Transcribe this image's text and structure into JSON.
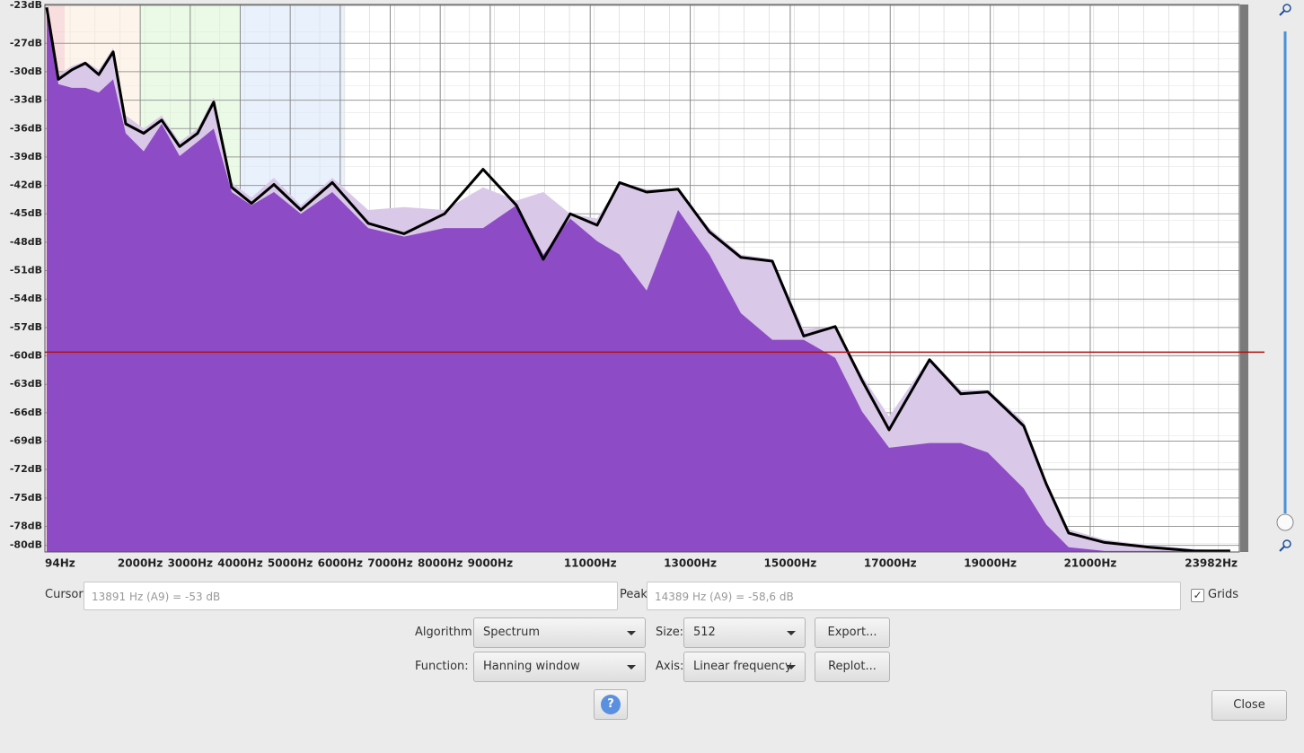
{
  "chart_data": {
    "type": "area",
    "x": [
      130,
      363,
      633,
      902,
      1172,
      1459,
      1710,
      2070,
      2429,
      2788,
      3147,
      3470,
      3830,
      4225,
      4674,
      5213,
      5841,
      6560,
      7278,
      8086,
      8858,
      9523,
      10062,
      10600,
      11139,
      11588,
      12127,
      12756,
      13384,
      14013,
      14642,
      15270,
      15899,
      16438,
      16977,
      17785,
      18413,
      18952,
      19670,
      20119,
      20568,
      21286,
      22184,
      23082,
      23800
    ],
    "series": [
      {
        "color": "#d9c8e8",
        "values": [
          -23.2,
          -30.3,
          -29.4,
          -28.9,
          -29.8,
          -27.5,
          -34.6,
          -36.0,
          -34.6,
          -37.4,
          -36.0,
          -32.7,
          -41.7,
          -43.3,
          -41.2,
          -44.1,
          -41.2,
          -44.6,
          -44.3,
          -44.6,
          -42.2,
          -43.6,
          -42.7,
          -45.0,
          -45.5,
          -41.7,
          -42.4,
          -42.4,
          -46.5,
          -49.3,
          -49.8,
          -57.2,
          -56.9,
          -62.1,
          -66.4,
          -60.2,
          -63.6,
          -63.6,
          -66.9,
          -73.1,
          -78.3,
          -79.4,
          -80.0,
          -80.4,
          -80.6
        ]
      },
      {
        "color": "#8a44c4",
        "values": [
          -23.2,
          -31.3,
          -31.7,
          -31.7,
          -32.2,
          -30.8,
          -36.5,
          -38.4,
          -35.5,
          -38.9,
          -37.4,
          -36.0,
          -42.7,
          -44.1,
          -42.7,
          -45.0,
          -42.7,
          -46.5,
          -47.4,
          -46.5,
          -46.5,
          -44.1,
          -49.3,
          -45.5,
          -47.9,
          -49.3,
          -53.1,
          -44.6,
          -49.3,
          -55.5,
          -58.3,
          -58.3,
          -60.2,
          -65.9,
          -69.7,
          -69.2,
          -69.2,
          -70.2,
          -74.0,
          -77.8,
          -80.2,
          -80.6,
          -80.6,
          -80.6,
          -80.6
        ]
      },
      {
        "color": "#000000",
        "values": [
          -23.2,
          -30.8,
          -29.8,
          -29.1,
          -30.3,
          -27.9,
          -35.5,
          -36.5,
          -35.1,
          -37.9,
          -36.5,
          -33.2,
          -42.2,
          -43.9,
          -41.9,
          -44.6,
          -41.7,
          -46.0,
          -47.1,
          -45.0,
          -40.3,
          -44.1,
          -49.8,
          -45.0,
          -46.2,
          -41.7,
          -42.7,
          -42.4,
          -46.9,
          -49.6,
          -50.0,
          -57.9,
          -56.9,
          -62.6,
          -67.8,
          -60.4,
          -64.0,
          -63.8,
          -67.4,
          -73.5,
          -78.7,
          -79.7,
          -80.2,
          -80.6,
          -80.6
        ]
      }
    ],
    "xlim": [
      94,
      23982
    ],
    "ylim": [
      -80.7,
      -22.9
    ],
    "xticks": [
      {
        "value": 94,
        "label": "94Hz"
      },
      {
        "value": 2000,
        "label": "2000Hz"
      },
      {
        "value": 3000,
        "label": "3000Hz"
      },
      {
        "value": 4000,
        "label": "4000Hz"
      },
      {
        "value": 5000,
        "label": "5000Hz"
      },
      {
        "value": 6000,
        "label": "6000Hz"
      },
      {
        "value": 7000,
        "label": "7000Hz"
      },
      {
        "value": 8000,
        "label": "8000Hz"
      },
      {
        "value": 9000,
        "label": "9000Hz"
      },
      {
        "value": 11000,
        "label": "11000Hz"
      },
      {
        "value": 13000,
        "label": "13000Hz"
      },
      {
        "value": 15000,
        "label": "15000Hz"
      },
      {
        "value": 17000,
        "label": "17000Hz"
      },
      {
        "value": 19000,
        "label": "19000Hz"
      },
      {
        "value": 21000,
        "label": "21000Hz"
      },
      {
        "value": 23982,
        "label": "23982Hz"
      }
    ],
    "yticks": [
      {
        "value": -23,
        "label": "-23dB"
      },
      {
        "value": -27,
        "label": "-27dB"
      },
      {
        "value": -30,
        "label": "-30dB"
      },
      {
        "value": -33,
        "label": "-33dB"
      },
      {
        "value": -36,
        "label": "-36dB"
      },
      {
        "value": -39,
        "label": "-39dB"
      },
      {
        "value": -42,
        "label": "-42dB"
      },
      {
        "value": -45,
        "label": "-45dB"
      },
      {
        "value": -48,
        "label": "-48dB"
      },
      {
        "value": -51,
        "label": "-51dB"
      },
      {
        "value": -54,
        "label": "-54dB"
      },
      {
        "value": -57,
        "label": "-57dB"
      },
      {
        "value": -60,
        "label": "-60dB"
      },
      {
        "value": -63,
        "label": "-63dB"
      },
      {
        "value": -66,
        "label": "-66dB"
      },
      {
        "value": -69,
        "label": "-69dB"
      },
      {
        "value": -72,
        "label": "-72dB"
      },
      {
        "value": -75,
        "label": "-75dB"
      },
      {
        "value": -78,
        "label": "-78dB"
      },
      {
        "value": -80,
        "label": "-80dB"
      }
    ],
    "grid": true,
    "cursor_line": -59.6,
    "cursor_color": "#b01010"
  },
  "controls": {
    "cursor_label": "Cursor:",
    "cursor_value": "13891 Hz (A9) = -53 dB",
    "peak_label": "Peak:",
    "peak_value": "14389 Hz (A9) = -58,6 dB",
    "grids_label": "Grids",
    "algorithm_label": "Algorithm:",
    "algorithm_value": "Spectrum",
    "size_label": "Size:",
    "size_value": "512",
    "export_button": "Export...",
    "function_label": "Function:",
    "function_value": "Hanning window",
    "axis_label": "Axis:",
    "axis_value": "Linear frequency",
    "replot_button": "Replot...",
    "help_button": "?",
    "close_button": "Close"
  }
}
